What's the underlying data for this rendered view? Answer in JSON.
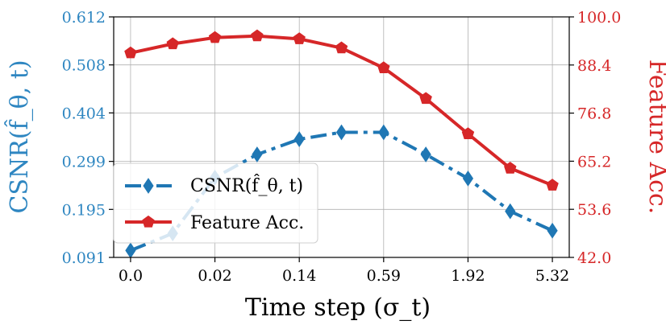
{
  "chart_data": {
    "type": "line",
    "title": "",
    "xlabel": "Time step (σ_t)",
    "ylabel_left": "CSNR(f̂_θ, t)",
    "ylabel_right": "Feature Acc.",
    "x_tick_positions": [
      0,
      2,
      4,
      6,
      8,
      10
    ],
    "x_tick_labels": [
      "0.0",
      "0.02",
      "0.14",
      "0.59",
      "1.92",
      "5.32"
    ],
    "x_range": [
      -0.4,
      10.4
    ],
    "left_axis": {
      "ylim": [
        0.091,
        0.612
      ],
      "ticks": [
        0.091,
        0.195,
        0.299,
        0.404,
        0.508,
        0.612
      ],
      "tick_labels": [
        "0.091",
        "0.195",
        "0.299",
        "0.404",
        "0.508",
        "0.612"
      ],
      "color": "#2e86c1"
    },
    "right_axis": {
      "ylim": [
        42.0,
        100.0
      ],
      "ticks": [
        42.0,
        53.6,
        65.2,
        76.8,
        88.4,
        100.0
      ],
      "tick_labels": [
        "42.0",
        "53.6",
        "65.2",
        "76.8",
        "88.4",
        "100.0"
      ],
      "color": "#d62728"
    },
    "grid": true,
    "legend_position": "lower-left",
    "series": [
      {
        "name": "CSNR(f̂_θ, t)",
        "axis": "left",
        "color": "#1f77b4",
        "linestyle": "dashdot",
        "marker": "diamond",
        "x": [
          0,
          1,
          2,
          3,
          4,
          5,
          6,
          7,
          8,
          9,
          10
        ],
        "values": [
          0.106,
          0.143,
          0.264,
          0.314,
          0.347,
          0.362,
          0.362,
          0.314,
          0.262,
          0.191,
          0.149
        ]
      },
      {
        "name": "Feature Acc.",
        "axis": "right",
        "color": "#d62728",
        "linestyle": "solid",
        "marker": "pentagon",
        "x": [
          0,
          1,
          2,
          3,
          4,
          5,
          6,
          7,
          8,
          9,
          10
        ],
        "values": [
          91.3,
          93.5,
          95.0,
          95.4,
          94.7,
          92.5,
          87.7,
          80.3,
          71.8,
          63.5,
          59.4
        ]
      }
    ]
  }
}
